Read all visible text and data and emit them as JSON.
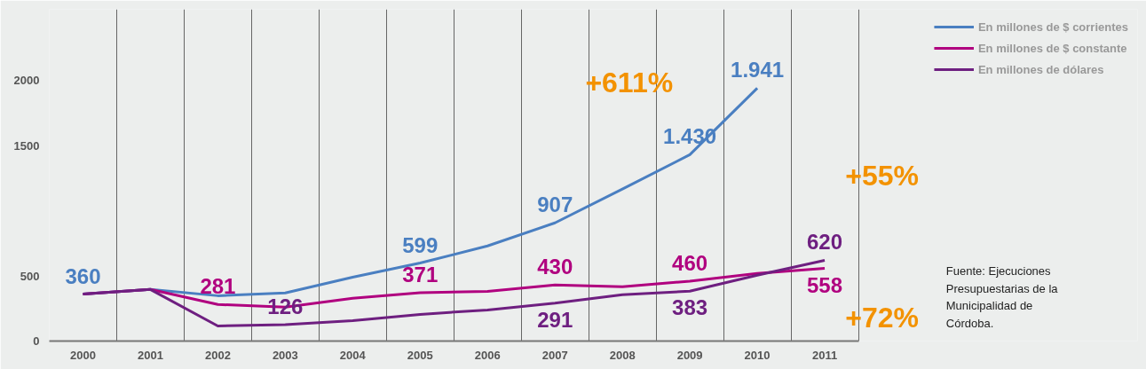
{
  "chart_data": {
    "type": "line",
    "categories": [
      "2000",
      "2001",
      "2002",
      "2003",
      "2004",
      "2005",
      "2006",
      "2007",
      "2008",
      "2009",
      "2010",
      "2011"
    ],
    "series": [
      {
        "name": "En millones de $ corrientes",
        "color": "#4a7fc1",
        "values": [
          360,
          396,
          348,
          369,
          490,
          599,
          730,
          907,
          1167,
          1430,
          1941,
          null
        ],
        "value_labels": [
          "360",
          null,
          null,
          null,
          null,
          "599",
          null,
          "907",
          null,
          "1.430",
          "1.941",
          null
        ]
      },
      {
        "name": "En millones de $ constante",
        "color": "#b0007f",
        "values": [
          360,
          396,
          281,
          260,
          328,
          371,
          382,
          430,
          417,
          460,
          519,
          558
        ],
        "value_labels": [
          null,
          null,
          "281",
          null,
          null,
          "371",
          null,
          "430",
          null,
          "460",
          null,
          "558"
        ]
      },
      {
        "name": "En millones de dólares",
        "color": "#6e1f80",
        "values": [
          360,
          396,
          116,
          126,
          157,
          205,
          239,
          291,
          355,
          383,
          505,
          620
        ],
        "value_labels": [
          null,
          null,
          null,
          "126",
          null,
          null,
          null,
          "291",
          null,
          "383",
          null,
          "620"
        ]
      }
    ],
    "ylim": [
      0,
      2546
    ],
    "yticks": [
      0,
      500,
      1500,
      2000
    ],
    "grid": "x",
    "legend": "top right",
    "line_style": "solid",
    "annotations": [
      "+611%",
      "+55%",
      "+72%",
      "Fuente: Ejecuciones Presupuestarias de la Municipalidad de Córdoba."
    ]
  }
}
